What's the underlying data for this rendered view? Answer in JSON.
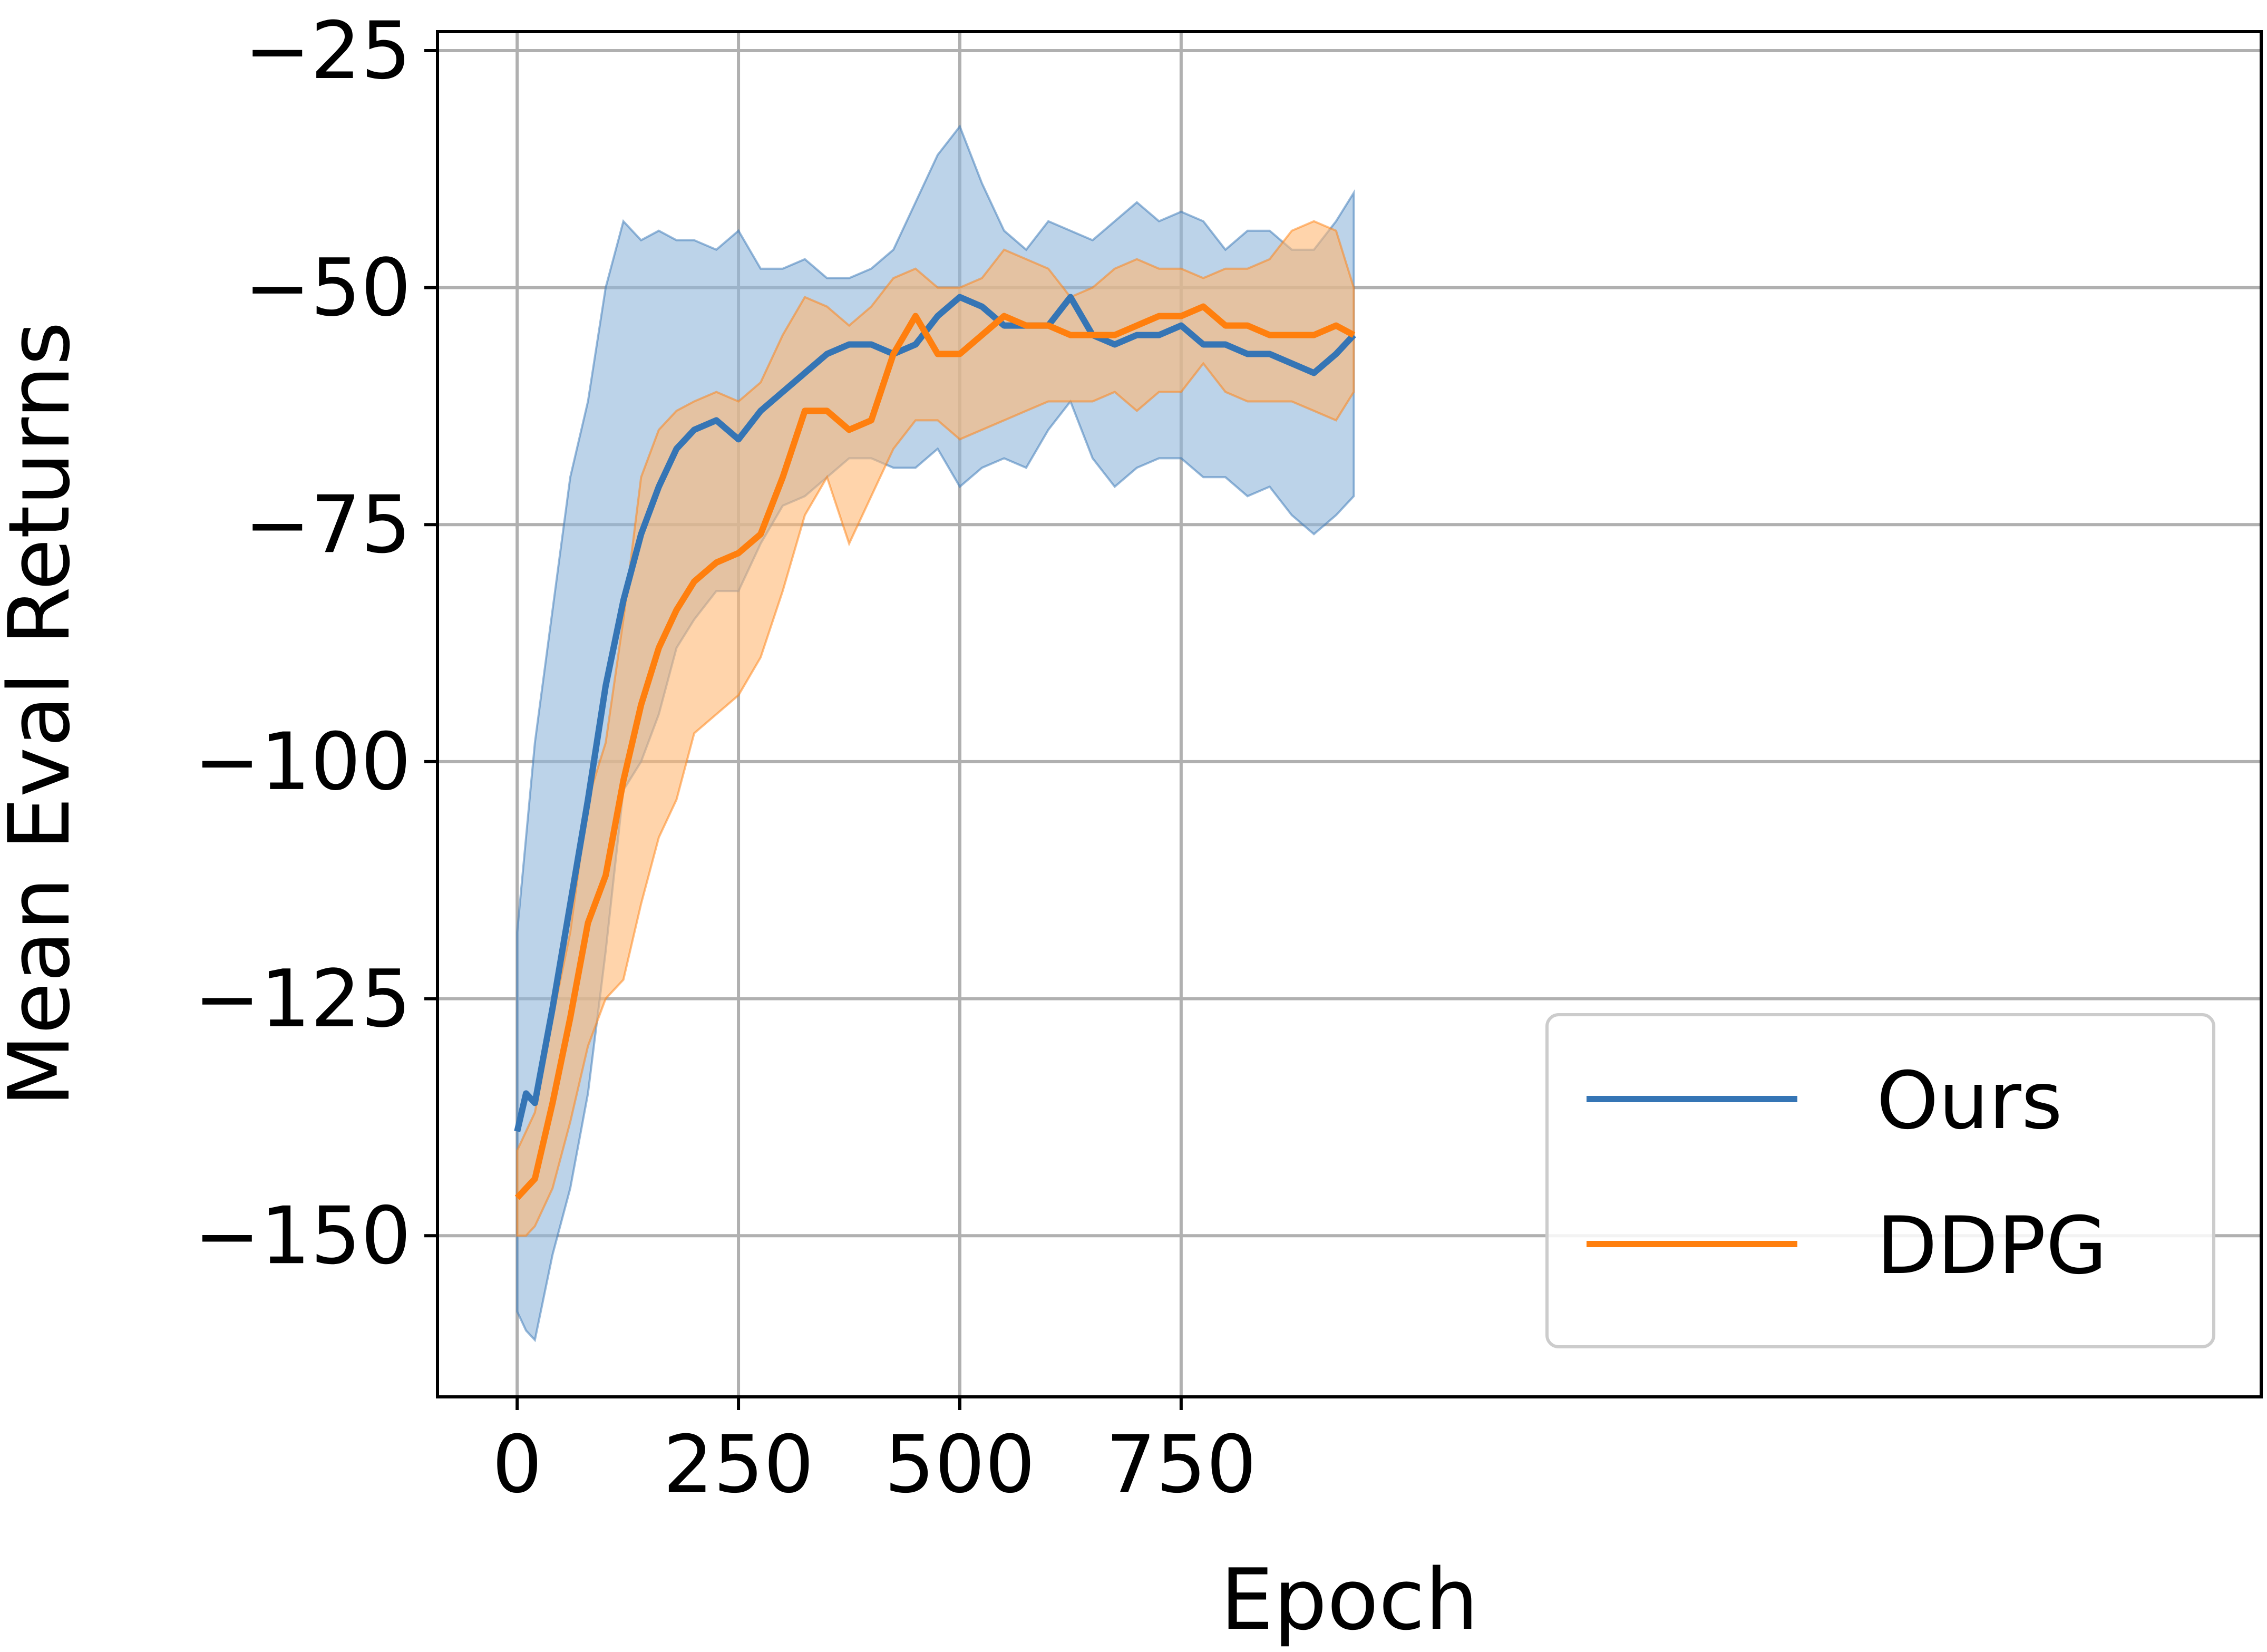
{
  "chart_data": {
    "type": "line",
    "title": "",
    "xlabel": "Epoch",
    "ylabel": "Mean Eval Returns",
    "xlim": [
      -90,
      1970
    ],
    "ylim": [
      -167,
      -23
    ],
    "xticks": [
      0,
      250,
      500,
      750
    ],
    "xtick_labels": [
      "0",
      "250",
      "500",
      "750"
    ],
    "yticks": [
      -25,
      -50,
      -75,
      -100,
      -125,
      -150
    ],
    "ytick_labels": [
      "−25",
      "−50",
      "−75",
      "−100",
      "−125",
      "−150"
    ],
    "grid": true,
    "legend_position": "lower-right",
    "series": [
      {
        "name": "Ours",
        "color": "#3575b5",
        "band_color": "#8fb5da",
        "x": [
          0,
          10,
          20,
          40,
          60,
          80,
          100,
          120,
          140,
          160,
          180,
          200,
          225,
          250,
          275,
          300,
          325,
          350,
          375,
          400,
          425,
          450,
          475,
          500,
          525,
          550,
          575,
          600,
          625,
          650,
          675,
          700,
          725,
          750,
          775,
          800,
          825,
          850,
          875,
          900,
          925,
          945
        ],
        "mean": [
          -139,
          -135,
          -136,
          -126,
          -115,
          -104,
          -92,
          -83,
          -76,
          -71,
          -67,
          -65,
          -64,
          -66,
          -63,
          -61,
          -59,
          -57,
          -56,
          -56,
          -57,
          -56,
          -53,
          -51,
          -52,
          -54,
          -54,
          -54,
          -51,
          -55,
          -56,
          -55,
          -55,
          -54,
          -56,
          -56,
          -57,
          -57,
          -58,
          -59,
          -57,
          -55
        ],
        "upper": [
          -118,
          -108,
          -98,
          -84,
          -70,
          -62,
          -50,
          -43,
          -45,
          -44,
          -45,
          -45,
          -46,
          -44,
          -48,
          -48,
          -47,
          -49,
          -49,
          -48,
          -46,
          -41,
          -36,
          -33,
          -39,
          -44,
          -46,
          -43,
          -44,
          -45,
          -43,
          -41,
          -43,
          -42,
          -43,
          -46,
          -44,
          -44,
          -46,
          -46,
          -43,
          -40
        ],
        "lower": [
          -158,
          -160,
          -161,
          -152,
          -145,
          -135,
          -120,
          -103,
          -100,
          -95,
          -88,
          -85,
          -82,
          -82,
          -77,
          -73,
          -72,
          -70,
          -68,
          -68,
          -69,
          -69,
          -67,
          -71,
          -69,
          -68,
          -69,
          -65,
          -62,
          -68,
          -71,
          -69,
          -68,
          -68,
          -70,
          -70,
          -72,
          -71,
          -74,
          -76,
          -74,
          -72
        ]
      },
      {
        "name": "DDPG",
        "color": "#ff7f0e",
        "band_color": "#ffb873",
        "x": [
          0,
          10,
          20,
          40,
          60,
          80,
          100,
          120,
          140,
          160,
          180,
          200,
          225,
          250,
          275,
          300,
          325,
          350,
          375,
          400,
          425,
          450,
          475,
          500,
          525,
          550,
          575,
          600,
          625,
          650,
          675,
          700,
          725,
          750,
          775,
          800,
          825,
          850,
          875,
          900,
          925,
          945
        ],
        "mean": [
          -146,
          -145,
          -144,
          -136,
          -127,
          -117,
          -112,
          -102,
          -94,
          -88,
          -84,
          -81,
          -79,
          -78,
          -76,
          -70,
          -63,
          -63,
          -65,
          -64,
          -57,
          -53,
          -57,
          -57,
          -55,
          -53,
          -54,
          -54,
          -55,
          -55,
          -55,
          -54,
          -53,
          -53,
          -52,
          -54,
          -54,
          -55,
          -55,
          -55,
          -54,
          -55
        ],
        "upper": [
          -141,
          -139,
          -137,
          -127,
          -118,
          -104,
          -98,
          -85,
          -70,
          -65,
          -63,
          -62,
          -61,
          -62,
          -60,
          -55,
          -51,
          -52,
          -54,
          -52,
          -49,
          -48,
          -50,
          -50,
          -49,
          -46,
          -47,
          -48,
          -51,
          -50,
          -48,
          -47,
          -48,
          -48,
          -49,
          -48,
          -48,
          -47,
          -44,
          -43,
          -44,
          -50
        ],
        "lower": [
          -150,
          -150,
          -149,
          -145,
          -138,
          -130,
          -125,
          -123,
          -115,
          -108,
          -104,
          -97,
          -95,
          -93,
          -89,
          -82,
          -74,
          -70,
          -77,
          -72,
          -67,
          -64,
          -64,
          -66,
          -65,
          -64,
          -63,
          -62,
          -62,
          -62,
          -61,
          -63,
          -61,
          -61,
          -58,
          -61,
          -62,
          -62,
          -62,
          -63,
          -64,
          -61
        ]
      }
    ]
  }
}
